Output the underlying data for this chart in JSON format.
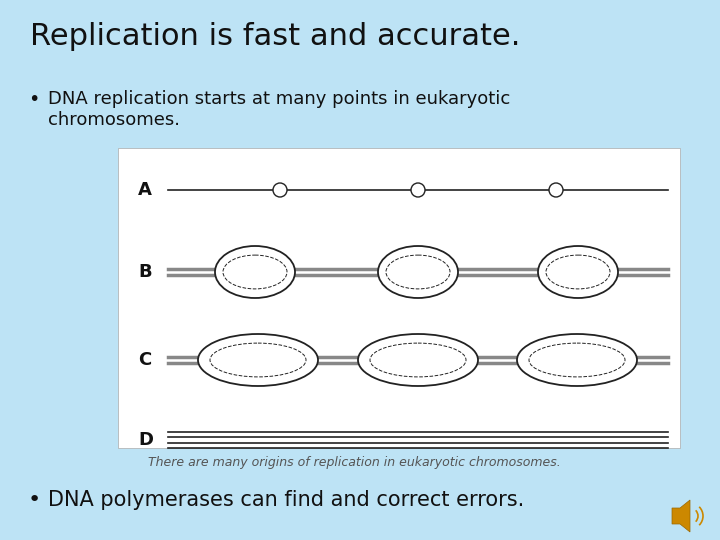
{
  "bg_color": "#bde3f5",
  "title": "Replication is fast and accurate.",
  "title_fontsize": 22,
  "bullet1": "DNA replication starts at many points in eukaryotic\nchromosomes.",
  "bullet1_fontsize": 13,
  "bullet2": "DNA polymerases can find and correct errors.",
  "bullet2_fontsize": 15,
  "caption": "There are many origins of replication in eukaryotic chromosomes.",
  "caption_fontsize": 9,
  "box_color": "#ffffff",
  "row_labels": [
    "A",
    "B",
    "C",
    "D"
  ],
  "line_color": "#222222",
  "gray_line_color": "#888888",
  "speaker_color": "#cc8800"
}
